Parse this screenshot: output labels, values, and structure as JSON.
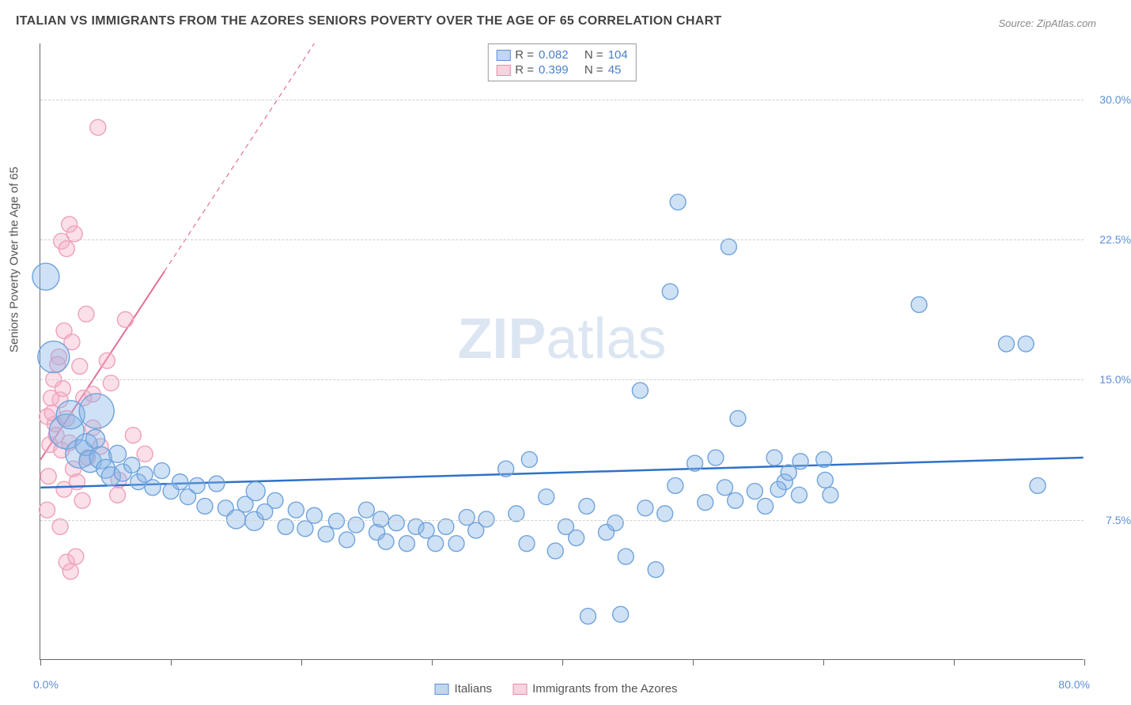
{
  "title": "ITALIAN VS IMMIGRANTS FROM THE AZORES SENIORS POVERTY OVER THE AGE OF 65 CORRELATION CHART",
  "source": "Source: ZipAtlas.com",
  "watermark_prefix": "ZIP",
  "watermark_suffix": "atlas",
  "chart": {
    "type": "scatter",
    "xlim": [
      0,
      80
    ],
    "ylim": [
      0,
      33
    ],
    "x_min_label": "0.0%",
    "x_max_label": "80.0%",
    "y_ticks": [
      7.5,
      15.0,
      22.5,
      30.0
    ],
    "y_tick_labels": [
      "7.5%",
      "15.0%",
      "22.5%",
      "30.0%"
    ],
    "x_minor_ticks": [
      0,
      10,
      20,
      30,
      40,
      50,
      60,
      70,
      80
    ],
    "y_axis_label": "Seniors Poverty Over the Age of 65",
    "background_color": "#ffffff",
    "grid_color": "#d0d0d0",
    "axis_color": "#666666",
    "label_color": "#5b8fd6",
    "title_color": "#444444",
    "title_fontsize": 16,
    "tick_fontsize": 14,
    "watermark_color": "#dce6f2",
    "watermark_fontsize": 72,
    "series": [
      {
        "name": "Italians",
        "color_fill": "rgba(135,180,230,0.40)",
        "color_stroke": "#6fa3dc",
        "trend_color": "#2d72c9",
        "trend_width": 2.5,
        "trend_dash": "none",
        "R": "0.082",
        "N": "104",
        "trend": {
          "x1": 0,
          "y1": 9.2,
          "x2": 80,
          "y2": 10.8
        },
        "points": [
          {
            "x": 0.4,
            "y": 20.5,
            "r": 17
          },
          {
            "x": 1.0,
            "y": 16.2,
            "r": 20
          },
          {
            "x": 2.0,
            "y": 12.2,
            "r": 22
          },
          {
            "x": 2.3,
            "y": 13.1,
            "r": 18
          },
          {
            "x": 3.0,
            "y": 11.0,
            "r": 18
          },
          {
            "x": 3.5,
            "y": 11.5,
            "r": 14
          },
          {
            "x": 3.8,
            "y": 10.6,
            "r": 14
          },
          {
            "x": 4.2,
            "y": 11.8,
            "r": 12
          },
          {
            "x": 4.6,
            "y": 10.8,
            "r": 14
          },
          {
            "x": 5.0,
            "y": 10.2,
            "r": 12
          },
          {
            "x": 5.4,
            "y": 9.8,
            "r": 12
          },
          {
            "x": 5.9,
            "y": 11.0,
            "r": 11
          },
          {
            "x": 6.3,
            "y": 10.0,
            "r": 11
          },
          {
            "x": 4.3,
            "y": 13.3,
            "r": 22
          },
          {
            "x": 7.0,
            "y": 10.4,
            "r": 10
          },
          {
            "x": 7.5,
            "y": 9.5,
            "r": 10
          },
          {
            "x": 8.0,
            "y": 9.9,
            "r": 10
          },
          {
            "x": 8.6,
            "y": 9.2,
            "r": 10
          },
          {
            "x": 9.3,
            "y": 10.1,
            "r": 10
          },
          {
            "x": 10.0,
            "y": 9.0,
            "r": 10
          },
          {
            "x": 10.7,
            "y": 9.5,
            "r": 10
          },
          {
            "x": 11.3,
            "y": 8.7,
            "r": 10
          },
          {
            "x": 12.0,
            "y": 9.3,
            "r": 10
          },
          {
            "x": 12.6,
            "y": 8.2,
            "r": 10
          },
          {
            "x": 13.5,
            "y": 9.4,
            "r": 10
          },
          {
            "x": 14.2,
            "y": 8.1,
            "r": 10
          },
          {
            "x": 15.0,
            "y": 7.5,
            "r": 12
          },
          {
            "x": 15.7,
            "y": 8.3,
            "r": 10
          },
          {
            "x": 16.4,
            "y": 7.4,
            "r": 12
          },
          {
            "x": 16.5,
            "y": 9.0,
            "r": 12
          },
          {
            "x": 17.2,
            "y": 7.9,
            "r": 10
          },
          {
            "x": 18.0,
            "y": 8.5,
            "r": 10
          },
          {
            "x": 18.8,
            "y": 7.1,
            "r": 10
          },
          {
            "x": 19.6,
            "y": 8.0,
            "r": 10
          },
          {
            "x": 20.3,
            "y": 7.0,
            "r": 10
          },
          {
            "x": 21.0,
            "y": 7.7,
            "r": 10
          },
          {
            "x": 21.9,
            "y": 6.7,
            "r": 10
          },
          {
            "x": 22.7,
            "y": 7.4,
            "r": 10
          },
          {
            "x": 23.5,
            "y": 6.4,
            "r": 10
          },
          {
            "x": 24.2,
            "y": 7.2,
            "r": 10
          },
          {
            "x": 25.0,
            "y": 8.0,
            "r": 10
          },
          {
            "x": 25.8,
            "y": 6.8,
            "r": 10
          },
          {
            "x": 26.1,
            "y": 7.5,
            "r": 10
          },
          {
            "x": 26.5,
            "y": 6.3,
            "r": 10
          },
          {
            "x": 27.3,
            "y": 7.3,
            "r": 10
          },
          {
            "x": 28.1,
            "y": 6.2,
            "r": 10
          },
          {
            "x": 28.8,
            "y": 7.1,
            "r": 10
          },
          {
            "x": 29.6,
            "y": 6.9,
            "r": 10
          },
          {
            "x": 30.3,
            "y": 6.2,
            "r": 10
          },
          {
            "x": 31.1,
            "y": 7.1,
            "r": 10
          },
          {
            "x": 31.9,
            "y": 6.2,
            "r": 10
          },
          {
            "x": 32.7,
            "y": 7.6,
            "r": 10
          },
          {
            "x": 33.4,
            "y": 6.9,
            "r": 10
          },
          {
            "x": 34.2,
            "y": 7.5,
            "r": 10
          },
          {
            "x": 35.7,
            "y": 10.2,
            "r": 10
          },
          {
            "x": 36.5,
            "y": 7.8,
            "r": 10
          },
          {
            "x": 37.3,
            "y": 6.2,
            "r": 10
          },
          {
            "x": 37.5,
            "y": 10.7,
            "r": 10
          },
          {
            "x": 38.8,
            "y": 8.7,
            "r": 10
          },
          {
            "x": 39.5,
            "y": 5.8,
            "r": 10
          },
          {
            "x": 40.3,
            "y": 7.1,
            "r": 10
          },
          {
            "x": 41.1,
            "y": 6.5,
            "r": 10
          },
          {
            "x": 41.9,
            "y": 8.2,
            "r": 10
          },
          {
            "x": 42.0,
            "y": 2.3,
            "r": 10
          },
          {
            "x": 43.4,
            "y": 6.8,
            "r": 10
          },
          {
            "x": 44.1,
            "y": 7.3,
            "r": 10
          },
          {
            "x": 44.9,
            "y": 5.5,
            "r": 10
          },
          {
            "x": 44.5,
            "y": 2.4,
            "r": 10
          },
          {
            "x": 46.0,
            "y": 14.4,
            "r": 10
          },
          {
            "x": 46.4,
            "y": 8.1,
            "r": 10
          },
          {
            "x": 47.2,
            "y": 4.8,
            "r": 10
          },
          {
            "x": 47.9,
            "y": 7.8,
            "r": 10
          },
          {
            "x": 48.7,
            "y": 9.3,
            "r": 10
          },
          {
            "x": 48.9,
            "y": 24.5,
            "r": 10
          },
          {
            "x": 48.3,
            "y": 19.7,
            "r": 10
          },
          {
            "x": 50.2,
            "y": 10.5,
            "r": 10
          },
          {
            "x": 51.0,
            "y": 8.4,
            "r": 10
          },
          {
            "x": 51.8,
            "y": 10.8,
            "r": 10
          },
          {
            "x": 52.5,
            "y": 9.2,
            "r": 10
          },
          {
            "x": 53.3,
            "y": 8.5,
            "r": 10
          },
          {
            "x": 52.8,
            "y": 22.1,
            "r": 10
          },
          {
            "x": 54.8,
            "y": 9.0,
            "r": 10
          },
          {
            "x": 55.6,
            "y": 8.2,
            "r": 10
          },
          {
            "x": 56.3,
            "y": 10.8,
            "r": 10
          },
          {
            "x": 57.1,
            "y": 9.5,
            "r": 10
          },
          {
            "x": 53.5,
            "y": 12.9,
            "r": 10
          },
          {
            "x": 57.4,
            "y": 10.0,
            "r": 10
          },
          {
            "x": 58.2,
            "y": 8.8,
            "r": 10
          },
          {
            "x": 58.3,
            "y": 10.6,
            "r": 10
          },
          {
            "x": 56.6,
            "y": 9.1,
            "r": 10
          },
          {
            "x": 60.1,
            "y": 10.7,
            "r": 10
          },
          {
            "x": 60.6,
            "y": 8.8,
            "r": 10
          },
          {
            "x": 60.2,
            "y": 9.6,
            "r": 10
          },
          {
            "x": 67.4,
            "y": 19.0,
            "r": 10
          },
          {
            "x": 74.1,
            "y": 16.9,
            "r": 10
          },
          {
            "x": 75.6,
            "y": 16.9,
            "r": 10
          },
          {
            "x": 76.5,
            "y": 9.3,
            "r": 10
          }
        ]
      },
      {
        "name": "Immigrants from the Azores",
        "color_fill": "rgba(245,175,200,0.40)",
        "color_stroke": "#eda1ba",
        "trend_color": "#e46f95",
        "trend_width": 2,
        "trend_dash": "solid_then_dash",
        "R": "0.399",
        "N": "45",
        "trend": {
          "x1": 0,
          "y1": 10.7,
          "x2": 21,
          "y2": 33.0
        },
        "trend_solid_end_x": 9.5,
        "points": [
          {
            "x": 0.5,
            "y": 13.0,
            "r": 10
          },
          {
            "x": 1.0,
            "y": 15.0,
            "r": 10
          },
          {
            "x": 1.4,
            "y": 16.2,
            "r": 10
          },
          {
            "x": 0.7,
            "y": 11.5,
            "r": 10
          },
          {
            "x": 1.1,
            "y": 12.6,
            "r": 10
          },
          {
            "x": 1.5,
            "y": 13.9,
            "r": 10
          },
          {
            "x": 0.8,
            "y": 14.0,
            "r": 10
          },
          {
            "x": 1.2,
            "y": 12.0,
            "r": 10
          },
          {
            "x": 1.6,
            "y": 11.2,
            "r": 10
          },
          {
            "x": 0.9,
            "y": 13.2,
            "r": 10
          },
          {
            "x": 1.3,
            "y": 15.8,
            "r": 10
          },
          {
            "x": 1.7,
            "y": 14.5,
            "r": 10
          },
          {
            "x": 2.0,
            "y": 12.9,
            "r": 10
          },
          {
            "x": 2.2,
            "y": 11.6,
            "r": 10
          },
          {
            "x": 2.5,
            "y": 10.2,
            "r": 10
          },
          {
            "x": 2.8,
            "y": 9.5,
            "r": 10
          },
          {
            "x": 0.6,
            "y": 9.8,
            "r": 10
          },
          {
            "x": 1.8,
            "y": 9.1,
            "r": 10
          },
          {
            "x": 3.2,
            "y": 8.5,
            "r": 10
          },
          {
            "x": 3.6,
            "y": 10.8,
            "r": 10
          },
          {
            "x": 0.5,
            "y": 8.0,
            "r": 10
          },
          {
            "x": 1.5,
            "y": 7.1,
            "r": 10
          },
          {
            "x": 2.0,
            "y": 5.2,
            "r": 10
          },
          {
            "x": 2.3,
            "y": 4.7,
            "r": 10
          },
          {
            "x": 2.7,
            "y": 5.5,
            "r": 10
          },
          {
            "x": 5.9,
            "y": 8.8,
            "r": 10
          },
          {
            "x": 6.0,
            "y": 9.6,
            "r": 10
          },
          {
            "x": 1.8,
            "y": 17.6,
            "r": 10
          },
          {
            "x": 2.4,
            "y": 17.0,
            "r": 10
          },
          {
            "x": 3.5,
            "y": 18.5,
            "r": 10
          },
          {
            "x": 1.6,
            "y": 22.4,
            "r": 10
          },
          {
            "x": 2.0,
            "y": 22.0,
            "r": 10
          },
          {
            "x": 2.2,
            "y": 23.3,
            "r": 10
          },
          {
            "x": 2.6,
            "y": 22.8,
            "r": 10
          },
          {
            "x": 4.4,
            "y": 28.5,
            "r": 10
          },
          {
            "x": 5.1,
            "y": 16.0,
            "r": 10
          },
          {
            "x": 5.4,
            "y": 14.8,
            "r": 10
          },
          {
            "x": 6.5,
            "y": 18.2,
            "r": 10
          },
          {
            "x": 7.1,
            "y": 12.0,
            "r": 10
          },
          {
            "x": 8.0,
            "y": 11.0,
            "r": 10
          },
          {
            "x": 4.0,
            "y": 12.4,
            "r": 10
          },
          {
            "x": 4.0,
            "y": 14.2,
            "r": 10
          },
          {
            "x": 4.6,
            "y": 11.4,
            "r": 10
          },
          {
            "x": 3.0,
            "y": 15.7,
            "r": 10
          },
          {
            "x": 3.3,
            "y": 14.0,
            "r": 10
          }
        ]
      }
    ]
  },
  "stats_box": {
    "rows": [
      {
        "swatch": "blue",
        "labels": [
          "R =",
          "N ="
        ],
        "values": [
          "0.082",
          "104"
        ]
      },
      {
        "swatch": "pink",
        "labels": [
          "R =",
          "N ="
        ],
        "values": [
          "0.399",
          "45"
        ]
      }
    ]
  },
  "bottom_legend": {
    "items": [
      {
        "swatch": "blue",
        "label": "Italians"
      },
      {
        "swatch": "pink",
        "label": "Immigrants from the Azores"
      }
    ]
  }
}
